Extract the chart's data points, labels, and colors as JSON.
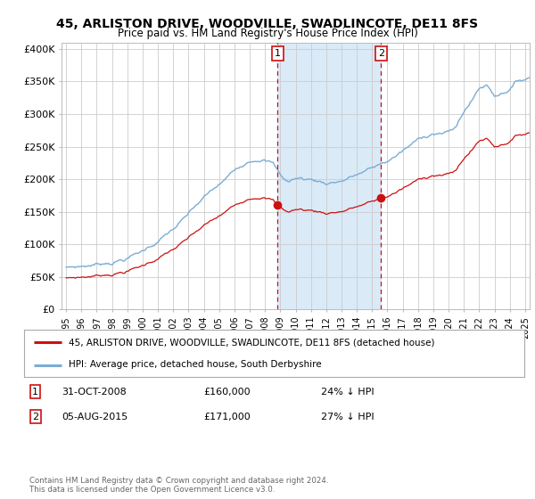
{
  "title": "45, ARLISTON DRIVE, WOODVILLE, SWADLINCOTE, DE11 8FS",
  "subtitle": "Price paid vs. HM Land Registry's House Price Index (HPI)",
  "ylim": [
    0,
    420000
  ],
  "yticks": [
    0,
    50000,
    100000,
    150000,
    200000,
    250000,
    300000,
    350000,
    400000
  ],
  "ytick_labels": [
    "£0",
    "£50K",
    "£100K",
    "£150K",
    "£200K",
    "£250K",
    "£300K",
    "£350K",
    "£400K"
  ],
  "hpi_color": "#7aadd4",
  "price_color": "#cc1111",
  "sale1_date": 2008.83,
  "sale1_price": 160000,
  "sale2_date": 2015.58,
  "sale2_price": 171000,
  "shade_color": "#daeaf7",
  "vline_color": "#cc1111",
  "legend_label1": "45, ARLISTON DRIVE, WOODVILLE, SWADLINCOTE, DE11 8FS (detached house)",
  "legend_label2": "HPI: Average price, detached house, South Derbyshire",
  "note1_label": "1",
  "note1_date": "31-OCT-2008",
  "note1_price": "£160,000",
  "note1_hpi": "24% ↓ HPI",
  "note2_label": "2",
  "note2_date": "05-AUG-2015",
  "note2_price": "£171,000",
  "note2_hpi": "27% ↓ HPI",
  "copyright": "Contains HM Land Registry data © Crown copyright and database right 2024.\nThis data is licensed under the Open Government Licence v3.0.",
  "background_color": "#ffffff",
  "grid_color": "#cccccc",
  "xmin": 1995.0,
  "xmax": 2025.3
}
